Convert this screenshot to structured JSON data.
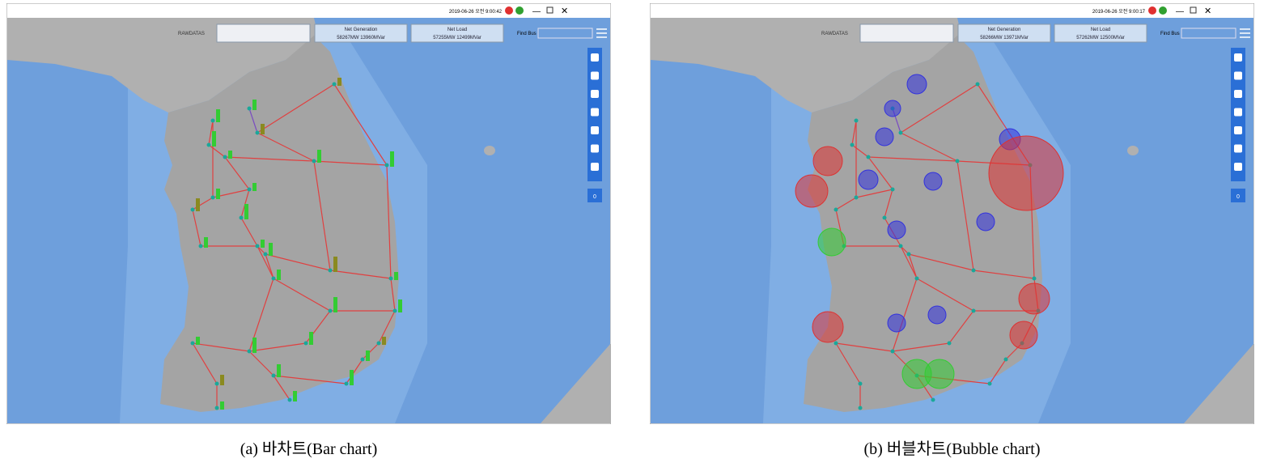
{
  "windows": [
    {
      "timestamp": "2019-06-26 오전 9:00:42",
      "rawdatas": "RAWDATAS",
      "net_generation": {
        "label": "Net Generation",
        "value": "58267MW 13960MVar"
      },
      "net_load": {
        "label": "Net Load",
        "value": "57255MW 12499MVar"
      },
      "find_bus": "Find Bus",
      "badge": "0",
      "caption": "(a)  바차트(Bar chart)"
    },
    {
      "timestamp": "2019-06-26 오전 9:00:17",
      "rawdatas": "RAWDATAS",
      "net_generation": {
        "label": "Net Generation",
        "value": "58266MW 13971MVar"
      },
      "net_load": {
        "label": "Net Load",
        "value": "57262MW 12500MVar"
      },
      "find_bus": "Find Bus",
      "badge": "0",
      "caption": "(b)  버블차트(Bubble chart)"
    }
  ]
}
